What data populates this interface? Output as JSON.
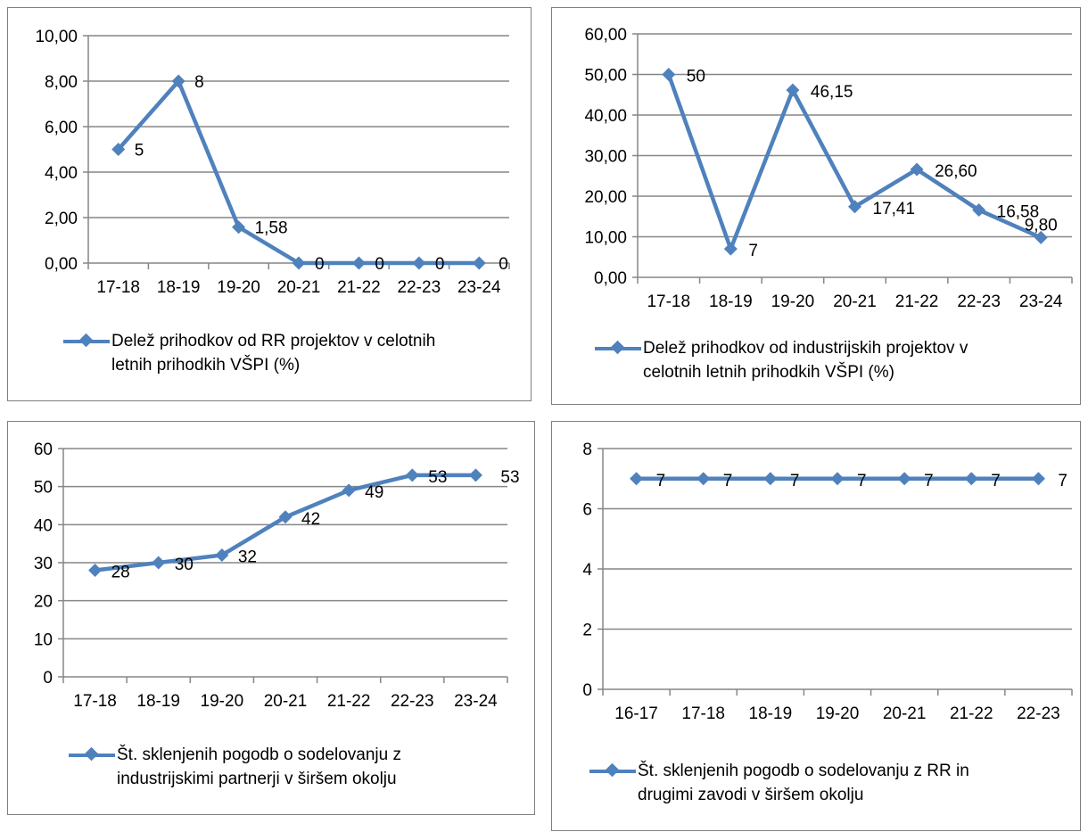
{
  "colors": {
    "series": "#4f81bd",
    "grid": "#868686",
    "border": "#7f7f7f"
  },
  "chart_data": [
    {
      "type": "line",
      "categories": [
        "17-18",
        "18-19",
        "19-20",
        "20-21",
        "21-22",
        "22-23",
        "23-24"
      ],
      "series": [
        {
          "name": "Delež prihodkov od RR projektov v celotnih letnih prihodkih VŠPI (%)",
          "values": [
            5,
            8,
            1.58,
            0,
            0,
            0,
            0
          ]
        }
      ],
      "data_labels": [
        "5",
        "8",
        "1,58",
        "0",
        "0",
        "0",
        "0"
      ],
      "ylim": [
        0,
        10
      ],
      "yticks": [
        "0,00",
        "2,00",
        "4,00",
        "6,00",
        "8,00",
        "10,00"
      ],
      "grid": true,
      "legend_position": "bottom",
      "legend_lines": [
        "Delež prihodkov od RR projektov v celotnih",
        "letnih prihodkih VŠPI (%)"
      ]
    },
    {
      "type": "line",
      "categories": [
        "17-18",
        "18-19",
        "19-20",
        "20-21",
        "21-22",
        "22-23",
        "23-24"
      ],
      "series": [
        {
          "name": "Delež prihodkov od industrijskih projektov v celotnih letnih prihodkih VŠPI (%)",
          "values": [
            50,
            7,
            46.15,
            17.41,
            26.6,
            16.58,
            9.8
          ]
        }
      ],
      "data_labels": [
        "50",
        "7",
        "46,15",
        "17,41",
        "26,60",
        "16,58",
        "9,80"
      ],
      "ylim": [
        0,
        60
      ],
      "yticks": [
        "0,00",
        "10,00",
        "20,00",
        "30,00",
        "40,00",
        "50,00",
        "60,00"
      ],
      "grid": true,
      "legend_position": "bottom",
      "legend_lines": [
        "Delež prihodkov od industrijskih projektov v",
        "celotnih letnih prihodkih VŠPI (%)"
      ]
    },
    {
      "type": "line",
      "categories": [
        "17-18",
        "18-19",
        "19-20",
        "20-21",
        "21-22",
        "22-23",
        "23-24"
      ],
      "series": [
        {
          "name": "Št. sklenjenih pogodb  o sodelovanju z industrijskimi partnerji  v širšem okolju",
          "values": [
            28,
            30,
            32,
            42,
            49,
            53,
            53
          ]
        }
      ],
      "data_labels": [
        "28",
        "30",
        "32",
        "42",
        "49",
        "53",
        "53"
      ],
      "ylim": [
        0,
        60
      ],
      "yticks": [
        "0",
        "10",
        "20",
        "30",
        "40",
        "50",
        "60"
      ],
      "grid": true,
      "legend_position": "bottom",
      "legend_lines": [
        "Št. sklenjenih pogodb  o sodelovanju z",
        "industrijskimi partnerji  v širšem okolju"
      ]
    },
    {
      "type": "line",
      "categories": [
        "16-17",
        "17-18",
        "18-19",
        "19-20",
        "20-21",
        "21-22",
        "22-23"
      ],
      "series": [
        {
          "name": "Št. sklenjenih pogodb  o sodelovanju z RR in drugimi zavodi v širšem okolju",
          "values": [
            7,
            7,
            7,
            7,
            7,
            7,
            7
          ]
        }
      ],
      "data_labels": [
        "7",
        "7",
        "7",
        "7",
        "7",
        "7",
        "7"
      ],
      "ylim": [
        0,
        8
      ],
      "yticks": [
        "0",
        "2",
        "4",
        "6",
        "8"
      ],
      "grid": true,
      "legend_position": "bottom",
      "legend_lines": [
        "Št. sklenjenih pogodb  o sodelovanju z RR in",
        "drugimi zavodi v širšem okolju"
      ]
    }
  ]
}
